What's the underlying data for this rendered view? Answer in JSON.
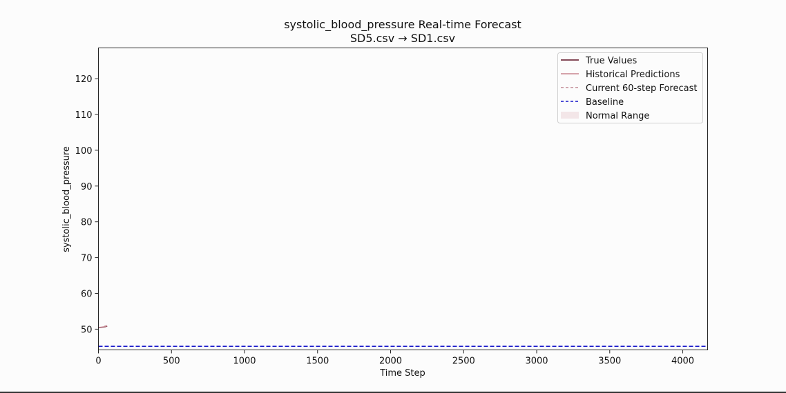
{
  "chart_data": {
    "type": "line",
    "title": "systolic_blood_pressure Real-time Forecast",
    "subtitle": "SD5.csv → SD1.csv",
    "xlabel": "Time Step",
    "ylabel": "systolic_blood_pressure",
    "xlim": [
      0,
      4170
    ],
    "ylim": [
      44.2,
      128.6
    ],
    "xticks": [
      0,
      500,
      1000,
      1500,
      2000,
      2500,
      3000,
      3500,
      4000
    ],
    "yticks": [
      50,
      60,
      70,
      80,
      90,
      100,
      110,
      120
    ],
    "grid": false,
    "legend_position": "top-right",
    "series": [
      {
        "name": "True Values",
        "color": "#5c0f22",
        "style": "solid",
        "x": [
          0,
          20,
          40,
          60
        ],
        "y": [
          50.4,
          50.5,
          50.6,
          50.8
        ]
      },
      {
        "name": "Historical Predictions",
        "color": "#c8838f",
        "style": "solid",
        "x": [
          0,
          20,
          40,
          60
        ],
        "y": [
          50.5,
          50.6,
          50.7,
          50.9
        ]
      },
      {
        "name": "Current 60-step Forecast",
        "color": "#c08a93",
        "style": "dashed",
        "x": [
          40,
          50,
          60
        ],
        "y": [
          50.8,
          50.9,
          51.0
        ]
      },
      {
        "name": "Baseline",
        "color": "#1212c8",
        "style": "dashed",
        "x": [
          0,
          4170
        ],
        "y": [
          45.2,
          45.2
        ]
      }
    ],
    "bands": [
      {
        "name": "Normal Range",
        "color": "#f3e6e8"
      }
    ]
  }
}
